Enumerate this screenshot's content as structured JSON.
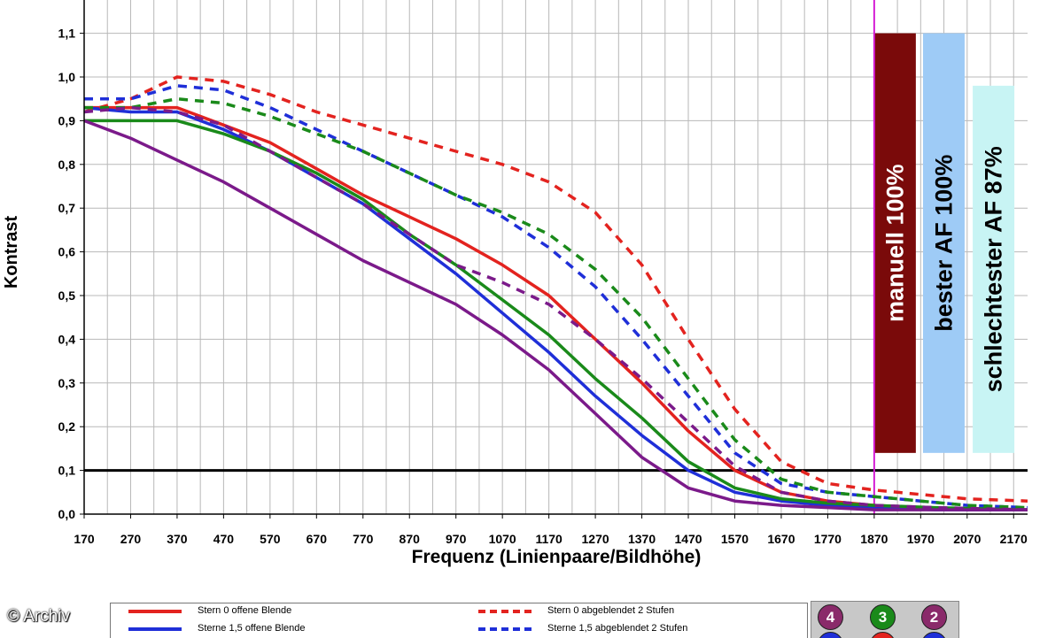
{
  "chart_data": {
    "type": "line",
    "xlabel": "Frequenz (Linienpaare/Bildhöhe)",
    "ylabel": "Kontrast",
    "xlim": [
      170,
      2200
    ],
    "ylim": [
      0,
      1.2
    ],
    "x_ticks": [
      "170",
      "270",
      "370",
      "470",
      "570",
      "670",
      "770",
      "870",
      "970",
      "1070",
      "1170",
      "1270",
      "1370",
      "1470",
      "1570",
      "1670",
      "1770",
      "1870",
      "1970",
      "2070",
      "2170"
    ],
    "y_ticks": [
      "0,0",
      "0,1",
      "0,2",
      "0,3",
      "0,4",
      "0,5",
      "0,6",
      "0,7",
      "0,8",
      "0,9",
      "1,0",
      "1,1"
    ],
    "grid": true,
    "threshold": 0.1,
    "marker_x": 1870,
    "bars": [
      {
        "label": "manuell 100%",
        "value": 1.1,
        "color": "#7a0a0a",
        "text_color": "#ffffff"
      },
      {
        "label": "bester AF 100%",
        "value": 1.1,
        "color": "#9ecbf6",
        "text_color": "#000000"
      },
      {
        "label": "schlechtester AF 87%",
        "value": 0.98,
        "color": "#c8f4f4",
        "text_color": "#000000"
      }
    ],
    "series": [
      {
        "name": "Stern 0 offene Blende",
        "color": "#e3231f",
        "dash": false,
        "points": [
          [
            170,
            0.93
          ],
          [
            250,
            0.93
          ],
          [
            370,
            0.93
          ],
          [
            470,
            0.89
          ],
          [
            570,
            0.85
          ],
          [
            670,
            0.79
          ],
          [
            770,
            0.73
          ],
          [
            870,
            0.68
          ],
          [
            970,
            0.63
          ],
          [
            1070,
            0.57
          ],
          [
            1170,
            0.5
          ],
          [
            1270,
            0.4
          ],
          [
            1370,
            0.3
          ],
          [
            1470,
            0.19
          ],
          [
            1570,
            0.1
          ],
          [
            1670,
            0.05
          ],
          [
            1770,
            0.03
          ],
          [
            1870,
            0.02
          ],
          [
            1970,
            0.015
          ],
          [
            2070,
            0.01
          ],
          [
            2200,
            0.01
          ]
        ]
      },
      {
        "name": "Sterne 1,5 offene Blende",
        "color": "#1f2fd8",
        "dash": false,
        "points": [
          [
            170,
            0.93
          ],
          [
            270,
            0.92
          ],
          [
            370,
            0.92
          ],
          [
            470,
            0.88
          ],
          [
            570,
            0.83
          ],
          [
            670,
            0.77
          ],
          [
            770,
            0.71
          ],
          [
            870,
            0.63
          ],
          [
            970,
            0.55
          ],
          [
            1070,
            0.46
          ],
          [
            1170,
            0.37
          ],
          [
            1270,
            0.27
          ],
          [
            1370,
            0.18
          ],
          [
            1470,
            0.1
          ],
          [
            1570,
            0.05
          ],
          [
            1670,
            0.03
          ],
          [
            1770,
            0.02
          ],
          [
            1870,
            0.015
          ],
          [
            2000,
            0.01
          ],
          [
            2200,
            0.01
          ]
        ]
      },
      {
        "name": "Stern 0 abgeblendet 2 Stufen",
        "color": "#e3231f",
        "dash": true,
        "points": [
          [
            170,
            0.92
          ],
          [
            270,
            0.95
          ],
          [
            370,
            1.0
          ],
          [
            470,
            0.99
          ],
          [
            570,
            0.96
          ],
          [
            670,
            0.92
          ],
          [
            770,
            0.89
          ],
          [
            870,
            0.86
          ],
          [
            970,
            0.83
          ],
          [
            1070,
            0.8
          ],
          [
            1170,
            0.76
          ],
          [
            1270,
            0.69
          ],
          [
            1370,
            0.57
          ],
          [
            1470,
            0.4
          ],
          [
            1570,
            0.24
          ],
          [
            1670,
            0.12
          ],
          [
            1770,
            0.07
          ],
          [
            1870,
            0.055
          ],
          [
            1970,
            0.045
          ],
          [
            2070,
            0.035
          ],
          [
            2200,
            0.03
          ]
        ]
      },
      {
        "name": "Sterne 1,5 abgeblendet 2 Stufen",
        "color": "#1f2fd8",
        "dash": true,
        "points": [
          [
            170,
            0.95
          ],
          [
            270,
            0.95
          ],
          [
            370,
            0.98
          ],
          [
            470,
            0.97
          ],
          [
            570,
            0.93
          ],
          [
            670,
            0.88
          ],
          [
            770,
            0.83
          ],
          [
            870,
            0.78
          ],
          [
            970,
            0.73
          ],
          [
            1070,
            0.68
          ],
          [
            1170,
            0.61
          ],
          [
            1270,
            0.52
          ],
          [
            1370,
            0.4
          ],
          [
            1470,
            0.27
          ],
          [
            1570,
            0.14
          ],
          [
            1670,
            0.07
          ],
          [
            1770,
            0.05
          ],
          [
            1870,
            0.04
          ],
          [
            1970,
            0.03
          ],
          [
            2070,
            0.02
          ],
          [
            2200,
            0.015
          ]
        ]
      },
      {
        "name": "",
        "color": "#1a8a1a",
        "dash": false,
        "points": [
          [
            170,
            0.9
          ],
          [
            270,
            0.9
          ],
          [
            370,
            0.9
          ],
          [
            470,
            0.87
          ],
          [
            570,
            0.83
          ],
          [
            670,
            0.78
          ],
          [
            770,
            0.72
          ],
          [
            870,
            0.64
          ],
          [
            970,
            0.57
          ],
          [
            1070,
            0.49
          ],
          [
            1170,
            0.41
          ],
          [
            1270,
            0.31
          ],
          [
            1370,
            0.22
          ],
          [
            1470,
            0.12
          ],
          [
            1570,
            0.06
          ],
          [
            1670,
            0.035
          ],
          [
            1770,
            0.025
          ],
          [
            1870,
            0.02
          ],
          [
            2000,
            0.015
          ],
          [
            2200,
            0.01
          ]
        ]
      },
      {
        "name": "",
        "color": "#1a8a1a",
        "dash": true,
        "points": [
          [
            170,
            0.93
          ],
          [
            270,
            0.93
          ],
          [
            370,
            0.95
          ],
          [
            470,
            0.94
          ],
          [
            570,
            0.91
          ],
          [
            670,
            0.87
          ],
          [
            770,
            0.83
          ],
          [
            870,
            0.78
          ],
          [
            970,
            0.73
          ],
          [
            1070,
            0.69
          ],
          [
            1170,
            0.64
          ],
          [
            1270,
            0.56
          ],
          [
            1370,
            0.45
          ],
          [
            1470,
            0.31
          ],
          [
            1570,
            0.17
          ],
          [
            1670,
            0.08
          ],
          [
            1770,
            0.05
          ],
          [
            1870,
            0.04
          ],
          [
            1970,
            0.03
          ],
          [
            2070,
            0.02
          ],
          [
            2200,
            0.015
          ]
        ]
      },
      {
        "name": "",
        "color": "#7b1a8a",
        "dash": false,
        "points": [
          [
            170,
            0.9
          ],
          [
            270,
            0.86
          ],
          [
            370,
            0.81
          ],
          [
            470,
            0.76
          ],
          [
            570,
            0.7
          ],
          [
            670,
            0.64
          ],
          [
            770,
            0.58
          ],
          [
            870,
            0.53
          ],
          [
            970,
            0.48
          ],
          [
            1070,
            0.41
          ],
          [
            1170,
            0.33
          ],
          [
            1270,
            0.23
          ],
          [
            1370,
            0.13
          ],
          [
            1470,
            0.06
          ],
          [
            1570,
            0.03
          ],
          [
            1670,
            0.02
          ],
          [
            1770,
            0.015
          ],
          [
            1870,
            0.01
          ],
          [
            2000,
            0.01
          ],
          [
            2200,
            0.01
          ]
        ]
      },
      {
        "name": "",
        "color": "#7b1a8a",
        "dash": true,
        "points": [
          [
            170,
            0.92
          ],
          [
            270,
            0.93
          ],
          [
            370,
            0.92
          ],
          [
            470,
            0.89
          ],
          [
            570,
            0.83
          ],
          [
            670,
            0.77
          ],
          [
            770,
            0.71
          ],
          [
            870,
            0.64
          ],
          [
            970,
            0.57
          ],
          [
            1070,
            0.53
          ],
          [
            1170,
            0.48
          ],
          [
            1270,
            0.4
          ],
          [
            1370,
            0.31
          ],
          [
            1470,
            0.21
          ],
          [
            1570,
            0.11
          ],
          [
            1670,
            0.05
          ],
          [
            1770,
            0.03
          ],
          [
            1870,
            0.02
          ],
          [
            2000,
            0.015
          ],
          [
            2200,
            0.01
          ]
        ]
      }
    ]
  },
  "legend": [
    {
      "label": "Stern 0 offene Blende",
      "color": "#e3231f",
      "dash": false
    },
    {
      "label": "Stern 0 abgeblendet 2 Stufen",
      "color": "#e3231f",
      "dash": true
    },
    {
      "label": "Sterne 1,5 offene Blende",
      "color": "#1f2fd8",
      "dash": false
    },
    {
      "label": "Sterne 1,5 abgeblendet 2 Stufen",
      "color": "#1f2fd8",
      "dash": true
    }
  ],
  "key_circles": [
    {
      "label": "4",
      "color": "#8a2a6a"
    },
    {
      "label": "3",
      "color": "#1a8a1a"
    },
    {
      "label": "2",
      "color": "#8a2a6a"
    },
    {
      "label": "",
      "color": "#1f2fd8"
    },
    {
      "label": "",
      "color": "#e3231f"
    },
    {
      "label": "",
      "color": "#1f2fd8"
    }
  ],
  "watermark": "© Archiv"
}
